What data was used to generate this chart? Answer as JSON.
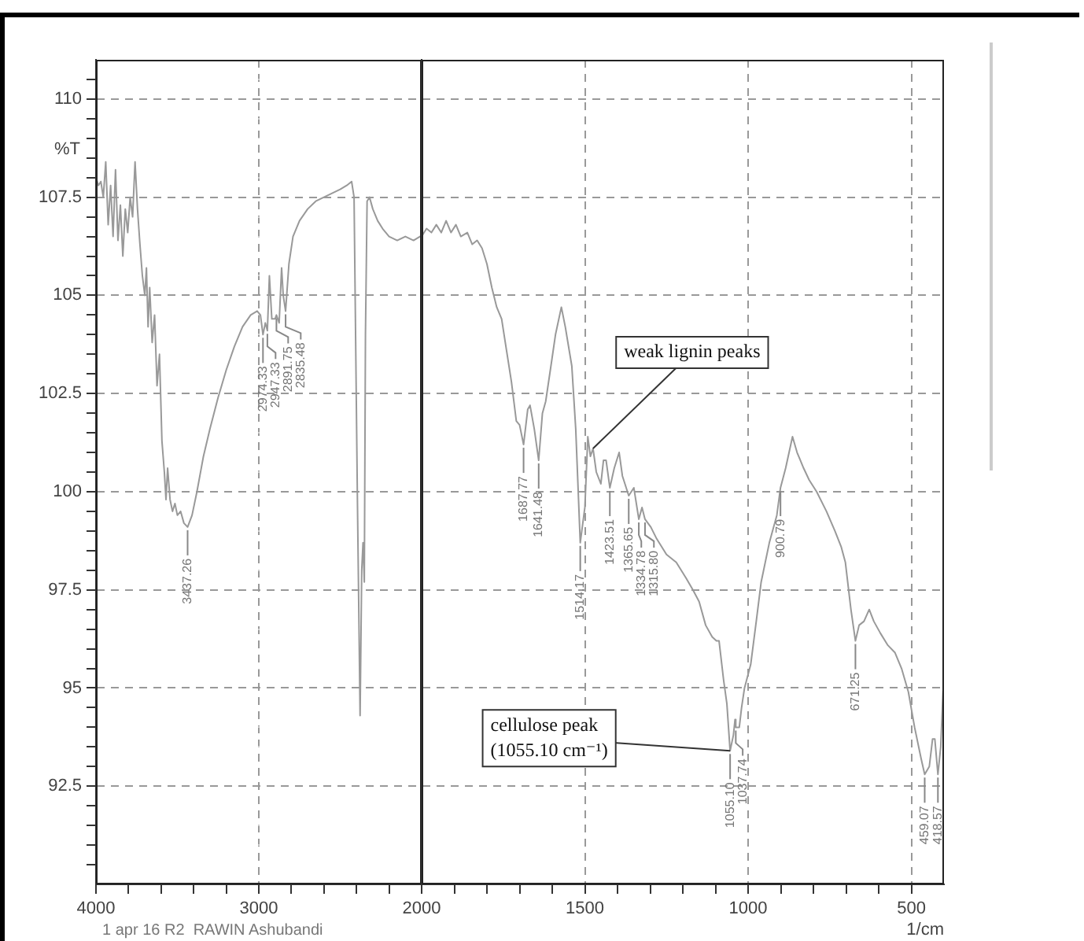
{
  "chart_data": [
    {
      "type": "line",
      "ylabel": "%T",
      "x": [
        4000,
        3985,
        3970,
        3955,
        3940,
        3925,
        3910,
        3895,
        3880,
        3865,
        3850,
        3835,
        3820,
        3805,
        3790,
        3775,
        3760,
        3745,
        3730,
        3715,
        3700,
        3690,
        3680,
        3670,
        3655,
        3640,
        3625,
        3610,
        3595,
        3580,
        3570,
        3560,
        3545,
        3530,
        3515,
        3500,
        3480,
        3460,
        3437.26,
        3410,
        3380,
        3340,
        3300,
        3250,
        3200,
        3150,
        3100,
        3050,
        3010,
        2990,
        2974.33,
        2960,
        2947.33,
        2935,
        2920,
        2900,
        2891.75,
        2875,
        2860,
        2850,
        2835.48,
        2815,
        2790,
        2750,
        2700,
        2650,
        2600,
        2550,
        2500,
        2460,
        2430,
        2415,
        2395,
        2378,
        2368,
        2360,
        2352,
        2345,
        2335,
        2320,
        2300,
        2270,
        2240,
        2200,
        2150,
        2100,
        2050,
        2010,
        2000
      ],
      "series": [
        {
          "color": "#999999",
          "values": [
            108.0,
            107.8,
            107.9,
            107.5,
            108.4,
            106.8,
            107.8,
            106.5,
            108.2,
            106.4,
            107.3,
            106.0,
            107.2,
            106.6,
            107.5,
            107.0,
            108.4,
            107.2,
            106.3,
            105.5,
            105.0,
            105.7,
            104.2,
            105.2,
            103.8,
            104.5,
            102.7,
            103.5,
            101.3,
            100.5,
            99.8,
            100.6,
            99.8,
            99.5,
            99.7,
            99.4,
            99.5,
            99.2,
            99.1,
            99.4,
            100.0,
            100.9,
            101.6,
            102.4,
            103.1,
            103.7,
            104.2,
            104.5,
            104.6,
            104.5,
            104.0,
            104.3,
            104.1,
            105.5,
            104.4,
            104.4,
            104.5,
            104.3,
            105.7,
            105.0,
            104.6,
            105.8,
            106.5,
            106.9,
            107.2,
            107.4,
            107.5,
            107.6,
            107.7,
            107.8,
            107.9,
            107.5,
            100.0,
            94.3,
            98.0,
            98.7,
            97.7,
            104.0,
            107.4,
            107.5,
            107.2,
            106.9,
            106.7,
            106.5,
            106.4,
            106.5,
            106.4,
            106.5,
            106.5
          ]
        }
      ],
      "xlim": [
        4000,
        2000
      ],
      "xticks": [
        4000,
        {
          "value": 3800,
          "label": null
        },
        {
          "value": 3600,
          "label": null
        },
        {
          "value": 3400,
          "label": null
        },
        {
          "value": 3200,
          "label": null
        },
        3000,
        {
          "value": 2800,
          "label": null
        },
        {
          "value": 2600,
          "label": null
        },
        {
          "value": 2400,
          "label": null
        },
        {
          "value": 2200,
          "label": null
        }
      ],
      "ylim": [
        90,
        111
      ],
      "yticks": [
        {
          "value": 90.5,
          "label": null
        },
        {
          "value": 91,
          "label": null
        },
        {
          "value": 91.5,
          "label": null
        },
        {
          "value": 92,
          "label": null
        },
        92.5,
        {
          "value": 93,
          "label": null
        },
        {
          "value": 93.5,
          "label": null
        },
        {
          "value": 94,
          "label": null
        },
        {
          "value": 94.5,
          "label": null
        },
        95,
        {
          "value": 95.5,
          "label": null
        },
        {
          "value": 96,
          "label": null
        },
        {
          "value": 96.5,
          "label": null
        },
        {
          "value": 97,
          "label": null
        },
        97.5,
        {
          "value": 98,
          "label": null
        },
        {
          "value": 98.5,
          "label": null
        },
        {
          "value": 99,
          "label": null
        },
        {
          "value": 99.5,
          "label": null
        },
        100,
        {
          "value": 100.5,
          "label": null
        },
        {
          "value": 101,
          "label": null
        },
        {
          "value": 101.5,
          "label": null
        },
        {
          "value": 102,
          "label": null
        },
        102.5,
        {
          "value": 103,
          "label": null
        },
        {
          "value": 103.5,
          "label": null
        },
        {
          "value": 104,
          "label": null
        },
        {
          "value": 104.5,
          "label": null
        },
        105,
        {
          "value": 105.5,
          "label": null
        },
        {
          "value": 106,
          "label": null
        },
        {
          "value": 106.5,
          "label": null
        },
        {
          "value": 107,
          "label": null
        },
        107.5,
        {
          "value": 108,
          "label": null
        },
        {
          "value": 108.5,
          "label": null
        },
        {
          "value": 109,
          "label": null
        },
        {
          "value": 109.5,
          "label": null
        },
        110,
        {
          "value": 110.5,
          "label": null
        }
      ],
      "grid": true,
      "annotations": [
        {
          "text": "3437.26",
          "x": 3437.26,
          "y": 99.1
        },
        {
          "text": "2974.33",
          "x": 2974.33,
          "y": 104.0
        },
        {
          "text": "2947.33",
          "x": 2947.33,
          "y": 104.1
        },
        {
          "text": "2891.75",
          "x": 2891.75,
          "y": 104.5
        },
        {
          "text": "2835.48",
          "x": 2835.48,
          "y": 104.6
        },
        "1 apr 16 R2  RAWIN Ashubandi"
      ]
    },
    {
      "type": "line",
      "xlabel": "1/cm",
      "x": [
        2000,
        1985,
        1970,
        1955,
        1940,
        1925,
        1910,
        1895,
        1880,
        1860,
        1845,
        1830,
        1815,
        1800,
        1785,
        1770,
        1755,
        1740,
        1725,
        1710,
        1700,
        1687.77,
        1675,
        1668,
        1655,
        1641.48,
        1630,
        1620,
        1604,
        1590,
        1572,
        1560,
        1540,
        1528,
        1514.17,
        1500,
        1491,
        1483,
        1475,
        1465,
        1451,
        1443,
        1435,
        1423.51,
        1410,
        1395,
        1385,
        1365.65,
        1350,
        1334.78,
        1325,
        1315.8,
        1298,
        1280,
        1250,
        1220,
        1190,
        1169,
        1150,
        1130,
        1110,
        1097,
        1089,
        1075,
        1065,
        1055.1,
        1045,
        1040,
        1037.74,
        1027,
        1020,
        1011,
        992,
        975,
        960,
        935,
        912,
        900.79,
        885,
        864,
        850,
        830,
        813,
        790,
        760,
        734,
        715,
        702,
        685,
        671.25,
        660,
        645,
        629,
        615,
        595,
        573,
        550,
        530,
        509,
        490,
        470,
        459.07,
        445,
        435,
        428,
        418.57,
        410,
        403,
        400
      ],
      "series": [
        {
          "color": "#999999",
          "values": [
            106.5,
            106.7,
            106.6,
            106.8,
            106.6,
            106.9,
            106.6,
            106.8,
            106.5,
            106.6,
            106.3,
            106.4,
            106.2,
            105.8,
            105.2,
            104.7,
            104.4,
            103.6,
            102.8,
            101.8,
            101.7,
            101.2,
            102.1,
            102.2,
            101.6,
            100.8,
            102.0,
            102.3,
            103.2,
            104.0,
            104.7,
            104.2,
            103.2,
            101.6,
            98.7,
            99.6,
            101.4,
            100.9,
            101.1,
            100.5,
            100.2,
            100.8,
            100.8,
            100.1,
            100.6,
            101.0,
            100.4,
            99.9,
            100.1,
            99.3,
            99.6,
            99.3,
            99.1,
            98.8,
            98.4,
            98.2,
            97.8,
            97.5,
            97.2,
            96.6,
            96.3,
            96.2,
            96.2,
            95.2,
            94.6,
            93.4,
            93.8,
            94.2,
            94.0,
            94.0,
            94.5,
            95.0,
            95.6,
            96.7,
            97.7,
            98.7,
            99.4,
            100.1,
            100.6,
            101.4,
            101.0,
            100.6,
            100.3,
            100.0,
            99.5,
            99.0,
            98.6,
            98.2,
            97.0,
            96.2,
            96.6,
            96.7,
            97.0,
            96.7,
            96.4,
            96.1,
            95.9,
            95.5,
            94.9,
            94.0,
            93.2,
            92.8,
            93.0,
            93.7,
            93.7,
            92.8,
            93.5,
            94.9,
            95.1
          ]
        }
      ],
      "xlim": [
        2000,
        400
      ],
      "xticks": [
        2000,
        {
          "value": 1900,
          "label": null
        },
        {
          "value": 1800,
          "label": null
        },
        {
          "value": 1700,
          "label": null
        },
        {
          "value": 1600,
          "label": null
        },
        1500,
        {
          "value": 1400,
          "label": null
        },
        {
          "value": 1300,
          "label": null
        },
        {
          "value": 1200,
          "label": null
        },
        {
          "value": 1100,
          "label": null
        },
        1000,
        {
          "value": 900,
          "label": null
        },
        {
          "value": 800,
          "label": null
        },
        {
          "value": 700,
          "label": null
        },
        {
          "value": 600,
          "label": null
        },
        500
      ],
      "ylim": [
        90,
        111
      ],
      "yticks": [
        92.5,
        95,
        97.5,
        100,
        102.5,
        105,
        107.5,
        110
      ],
      "grid": true,
      "tick_labels": "x",
      "annotations": [
        {
          "text": "1687.77",
          "x": 1687.77,
          "y": 101.2
        },
        {
          "text": "1641.48",
          "x": 1641.48,
          "y": 100.8
        },
        {
          "text": "1514.17",
          "x": 1514.17,
          "y": 98.7
        },
        {
          "text": "1423.51",
          "x": 1423.51,
          "y": 100.1
        },
        {
          "text": "1365.65",
          "x": 1365.65,
          "y": 99.9
        },
        {
          "text": "1334.78",
          "x": 1334.78,
          "y": 99.3
        },
        {
          "text": "1315.80",
          "x": 1315.8,
          "y": 99.3
        },
        {
          "text": "1055.10",
          "x": 1055.1,
          "y": 93.4
        },
        {
          "text": "1037.74",
          "x": 1037.74,
          "y": 94.0
        },
        {
          "text": "900.79",
          "x": 900.79,
          "y": 100.1
        },
        {
          "text": "671.25",
          "x": 671.25,
          "y": 96.2
        },
        {
          "text": "459.07",
          "x": 459.07,
          "y": 92.8
        },
        {
          "text": "418.57",
          "x": 418.57,
          "y": 92.8
        },
        {
          "text": "weak lignin peaks",
          "x": 1475,
          "y": 101.1
        },
        {
          "text": "cellulose peak\n(1055.10 cm⁻¹)",
          "x": 1055.1,
          "y": 93.4
        }
      ]
    }
  ]
}
